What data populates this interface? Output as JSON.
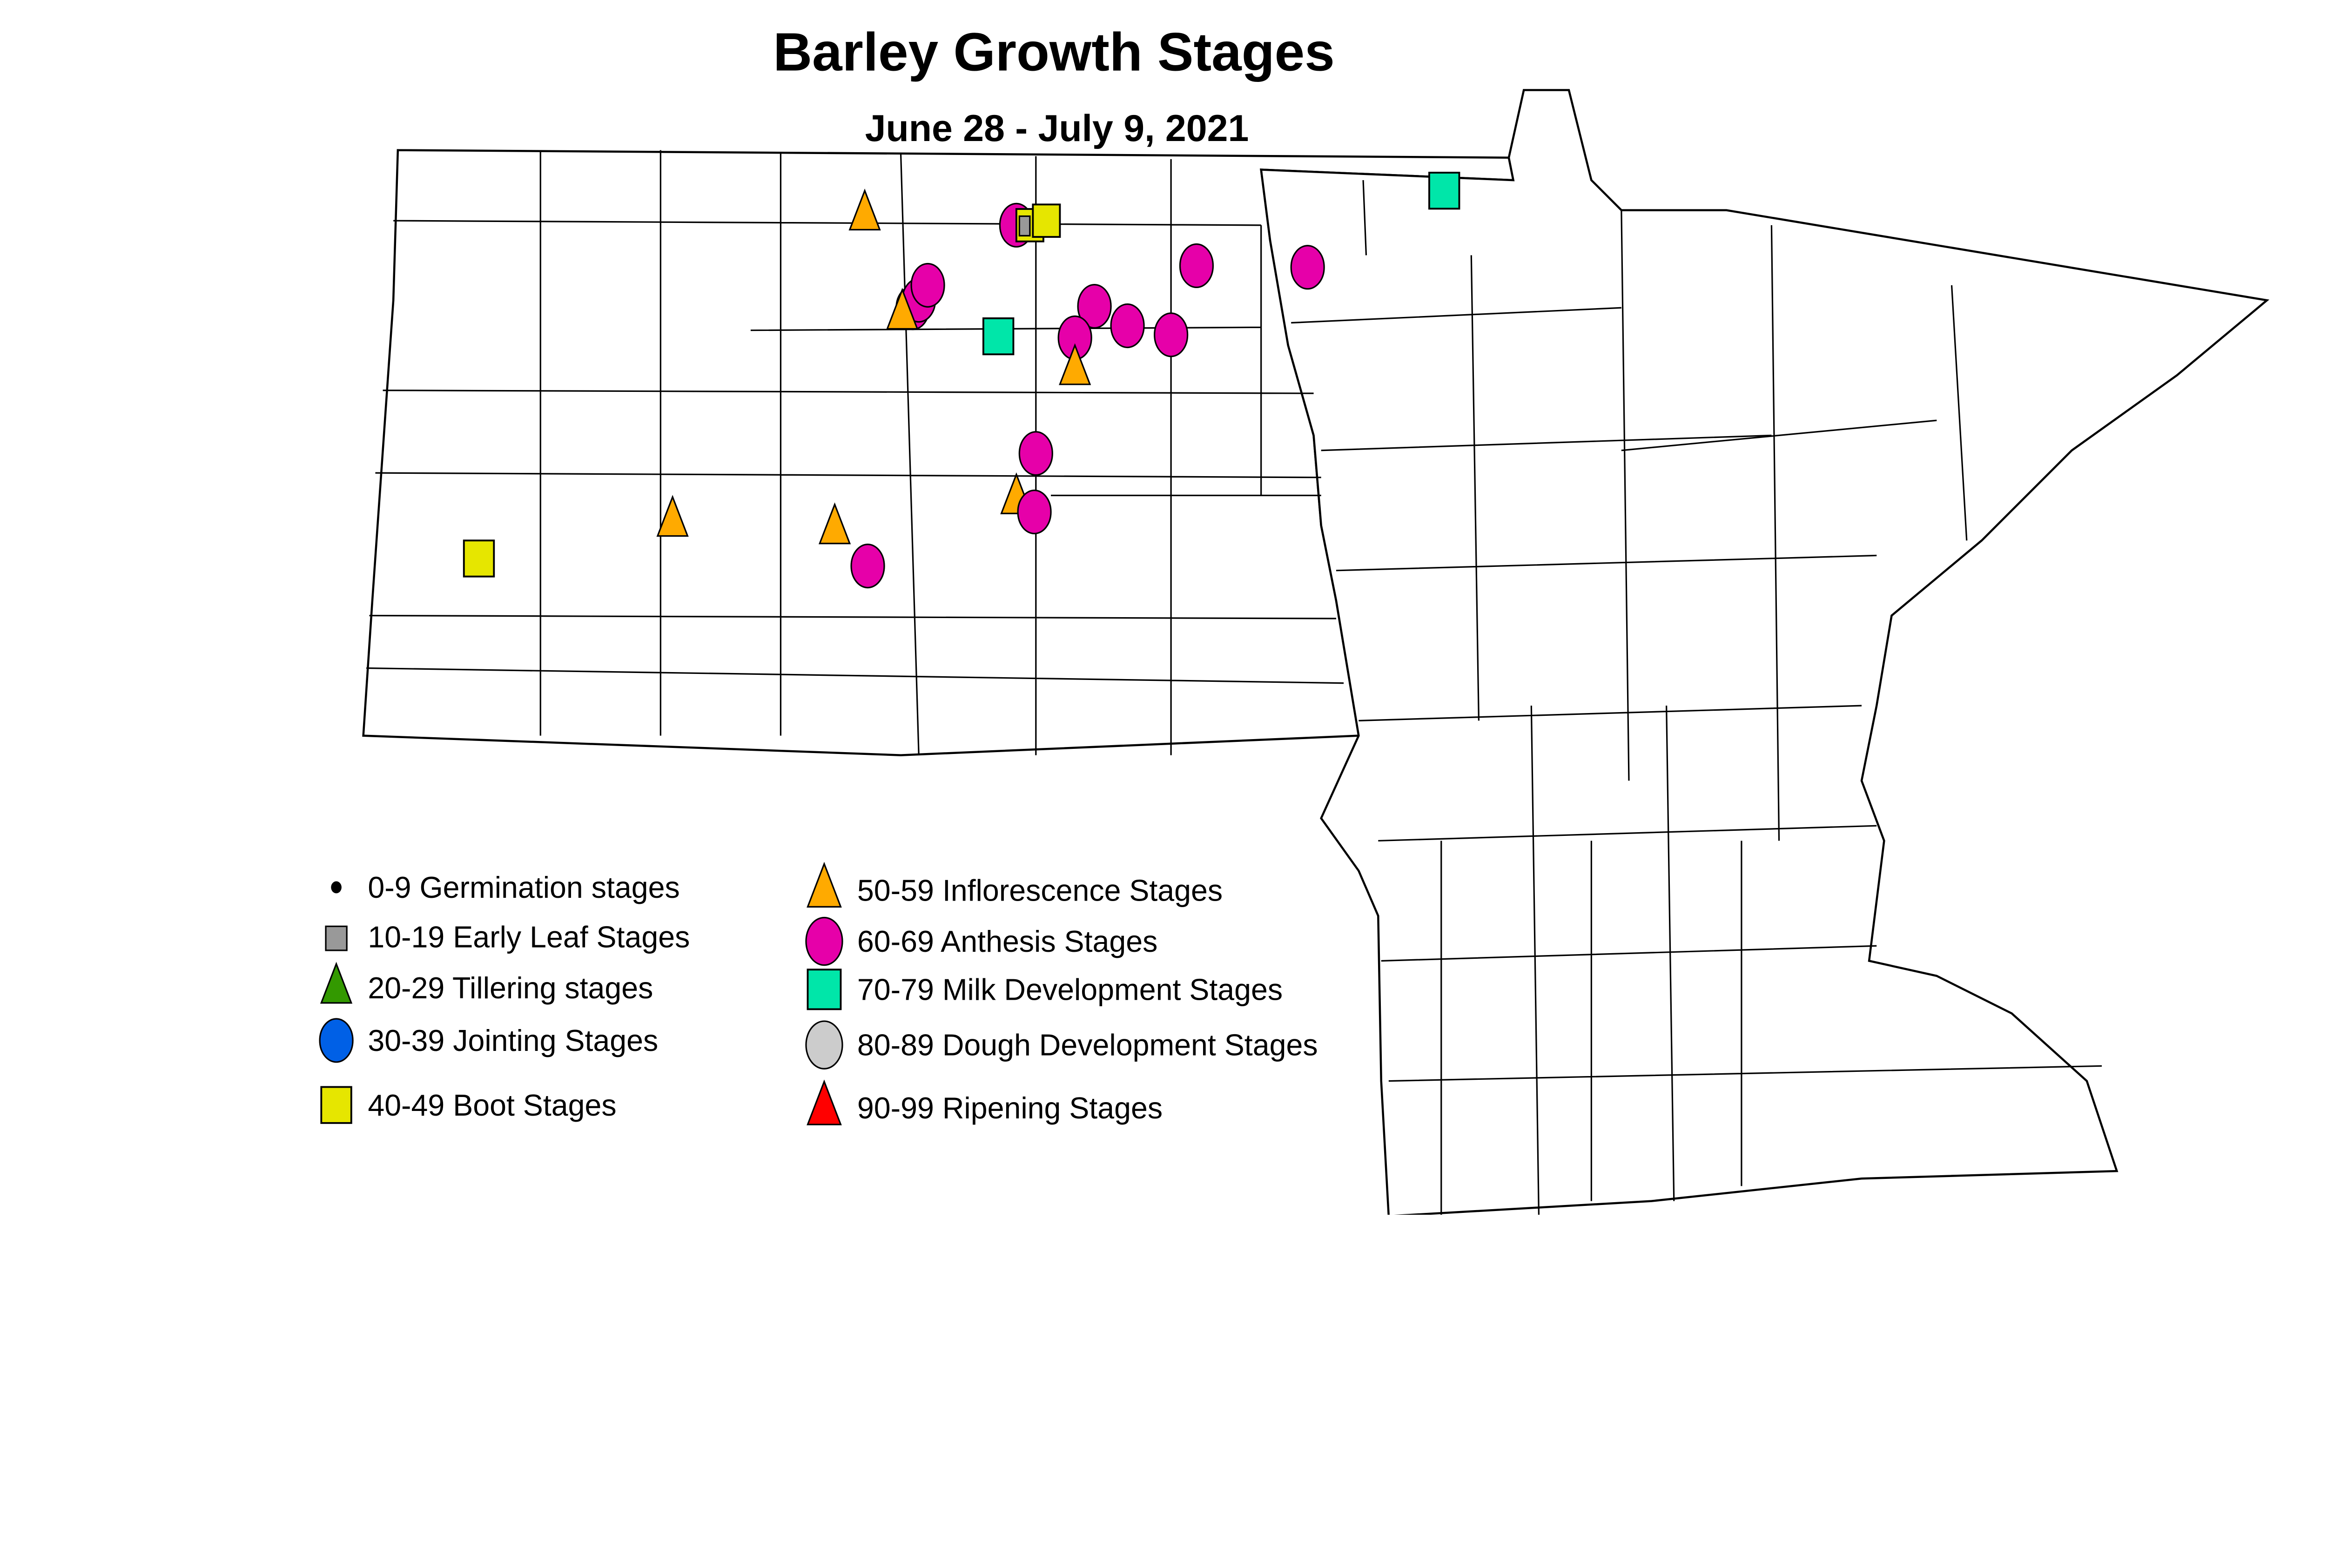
{
  "title": "Barley Growth Stages",
  "subtitle": "June 28 - July 9, 2021",
  "legend": [
    {
      "key": "g",
      "label": "0-9 Germination stages",
      "shape": "dot",
      "color": "#000000"
    },
    {
      "key": "el",
      "label": "10-19 Early Leaf Stages",
      "shape": "square-small",
      "color": "#999999"
    },
    {
      "key": "t",
      "label": "20-29 Tillering stages",
      "shape": "triangle",
      "color": "#339900"
    },
    {
      "key": "j",
      "label": "30-39 Jointing Stages",
      "shape": "circle",
      "color": "#0060E6"
    },
    {
      "key": "b",
      "label": "40-49 Boot Stages",
      "shape": "square",
      "color": "#E6E600"
    },
    {
      "key": "i",
      "label": "50-59 Inflorescence Stages",
      "shape": "triangle",
      "color": "#FFAA00"
    },
    {
      "key": "a",
      "label": "60-69 Anthesis Stages",
      "shape": "circle",
      "color": "#E600A9"
    },
    {
      "key": "m",
      "label": "70-79 Milk Development Stages",
      "shape": "square",
      "color": "#00E6A9"
    },
    {
      "key": "d",
      "label": "80-89 Dough Development Stages",
      "shape": "circle",
      "color": "#CCCCCC"
    },
    {
      "key": "r",
      "label": "90-99 Ripening Stages",
      "shape": "triangle",
      "color": "#FF0000"
    }
  ]
}
